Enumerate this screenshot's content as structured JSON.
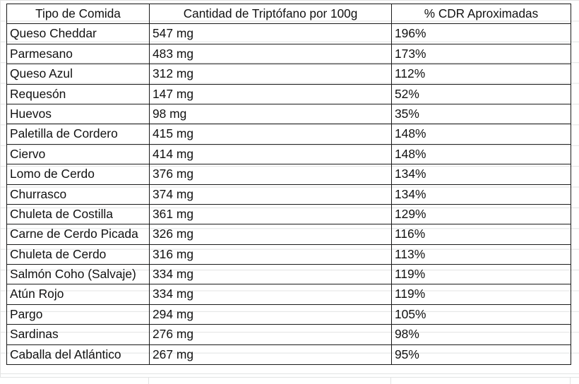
{
  "table": {
    "headers": [
      "Tipo de Comida",
      "Cantidad de Triptófano por 100g",
      "% CDR Aproximadas"
    ],
    "rows": [
      [
        "Queso Cheddar",
        "547 mg",
        "196%"
      ],
      [
        "Parmesano",
        "483 mg",
        "173%"
      ],
      [
        "Queso Azul",
        "312 mg",
        "112%"
      ],
      [
        "Requesón",
        "147 mg",
        "52%"
      ],
      [
        "Huevos",
        "98 mg",
        "35%"
      ],
      [
        "Paletilla de Cordero",
        "415 mg",
        "148%"
      ],
      [
        "Ciervo",
        "414 mg",
        "148%"
      ],
      [
        "Lomo de Cerdo",
        "376 mg",
        "134%"
      ],
      [
        "Churrasco",
        "374 mg",
        "134%"
      ],
      [
        "Chuleta de Costilla",
        "361 mg",
        "129%"
      ],
      [
        "Carne de Cerdo Picada",
        "326 mg",
        "116%"
      ],
      [
        "Chuleta de Cerdo",
        "316 mg",
        "113%"
      ],
      [
        "Salmón Coho (Salvaje)",
        "334 mg",
        "119%"
      ],
      [
        "Atún Rojo",
        "334 mg",
        "119%"
      ],
      [
        "Pargo",
        "294 mg",
        "105%"
      ],
      [
        "Sardinas",
        "276 mg",
        "98%"
      ],
      [
        "Caballa del Atlántico",
        "267 mg",
        "95%"
      ]
    ]
  }
}
